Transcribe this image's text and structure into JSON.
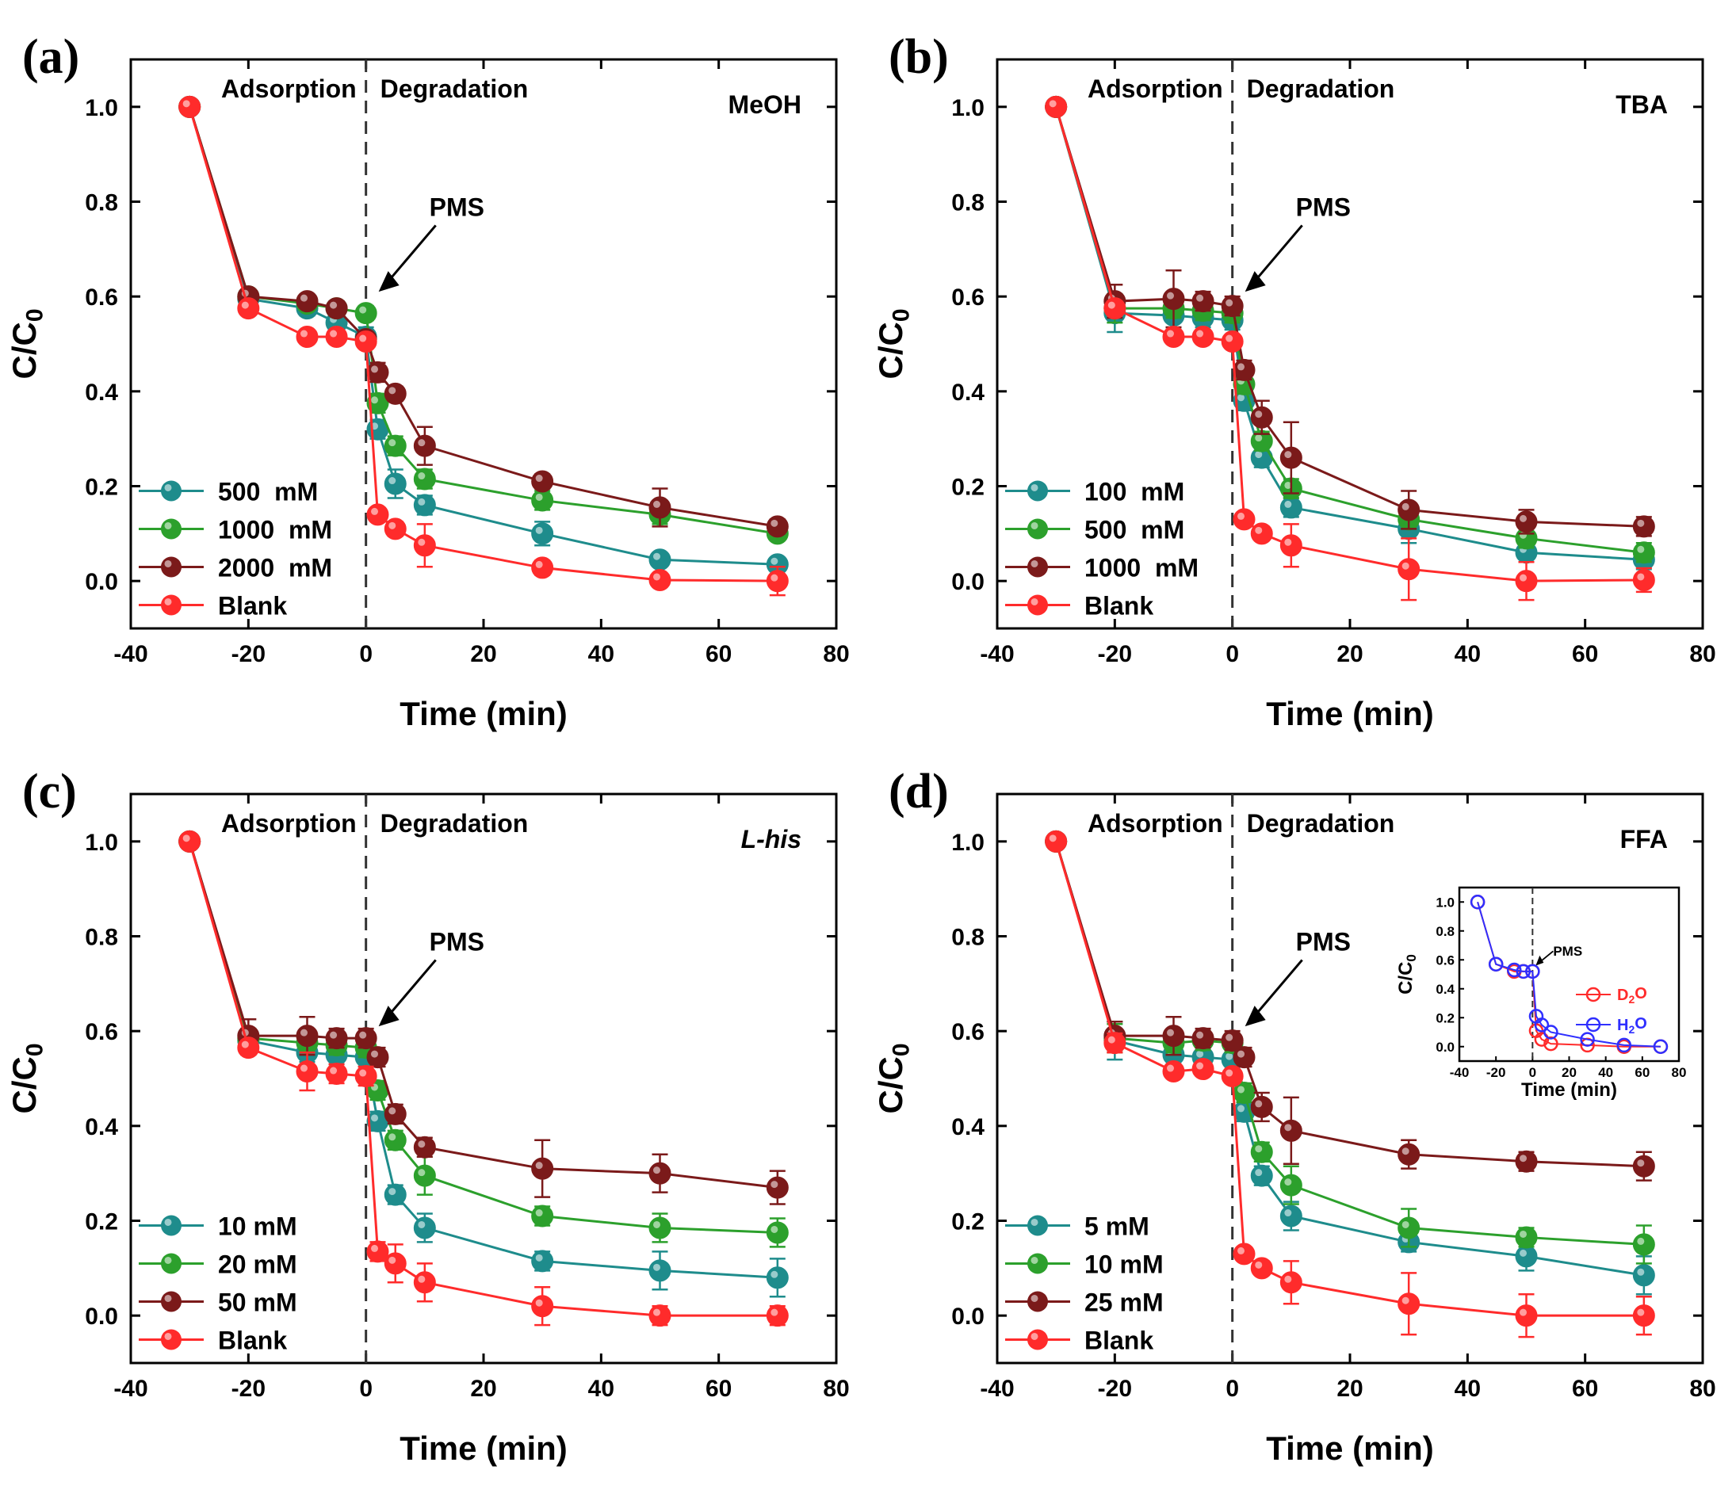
{
  "chart_data": [
    {
      "type": "line",
      "panel_label": "(a)",
      "annotation": "MeOH",
      "annotation_italic": false,
      "phase_labels": [
        "Adsorption",
        "Degradation"
      ],
      "arrow_label": "PMS",
      "xlabel": "Time (min)",
      "ylabel": "C/C0",
      "xlim": [
        -40,
        80
      ],
      "ylim": [
        -0.1,
        1.1
      ],
      "xticks": [
        -40,
        -20,
        0,
        20,
        40,
        60,
        80
      ],
      "yticks": [
        0.0,
        0.2,
        0.4,
        0.6,
        0.8,
        1.0
      ],
      "legend_position": "bottom-left",
      "x": [
        -30,
        -20,
        -10,
        -5,
        0,
        2,
        5,
        10,
        30,
        50,
        70
      ],
      "series": [
        {
          "name": "500  mM",
          "color": "#1e8c8c",
          "values": [
            1.0,
            0.595,
            0.575,
            0.545,
            0.515,
            0.32,
            0.205,
            0.16,
            0.1,
            0.045,
            0.035
          ],
          "errors": [
            0,
            0.01,
            0.015,
            0.02,
            0.02,
            0.02,
            0.03,
            0.02,
            0.025,
            0.01,
            0.01
          ]
        },
        {
          "name": "1000  mM",
          "color": "#2ca02c",
          "values": [
            1.0,
            0.6,
            0.585,
            0.575,
            0.565,
            0.375,
            0.285,
            0.215,
            0.17,
            0.14,
            0.1
          ],
          "errors": [
            0,
            0.01,
            0.01,
            0.015,
            0.015,
            0.02,
            0.02,
            0.02,
            0.02,
            0.02,
            0.01
          ]
        },
        {
          "name": "2000  mM",
          "color": "#7b1a1a",
          "values": [
            1.0,
            0.6,
            0.59,
            0.575,
            0.51,
            0.44,
            0.395,
            0.285,
            0.21,
            0.155,
            0.115
          ],
          "errors": [
            0,
            0.01,
            0.01,
            0.015,
            0.015,
            0.02,
            0.015,
            0.04,
            0.015,
            0.04,
            0.015
          ]
        },
        {
          "name": "Blank",
          "color": "#ff2b2b",
          "values": [
            1.0,
            0.575,
            0.515,
            0.515,
            0.505,
            0.14,
            0.11,
            0.075,
            0.028,
            0.002,
            0.0
          ],
          "errors": [
            0,
            0.01,
            0.01,
            0.01,
            0.01,
            0.01,
            0.015,
            0.045,
            0.015,
            0.01,
            0.03
          ]
        }
      ]
    },
    {
      "type": "line",
      "panel_label": "(b)",
      "annotation": "TBA",
      "annotation_italic": false,
      "phase_labels": [
        "Adsorption",
        "Degradation"
      ],
      "arrow_label": "PMS",
      "xlabel": "Time (min)",
      "ylabel": "C/C0",
      "xlim": [
        -40,
        80
      ],
      "ylim": [
        -0.1,
        1.1
      ],
      "xticks": [
        -40,
        -20,
        0,
        20,
        40,
        60,
        80
      ],
      "yticks": [
        0.0,
        0.2,
        0.4,
        0.6,
        0.8,
        1.0
      ],
      "legend_position": "bottom-left",
      "x": [
        -30,
        -20,
        -10,
        -5,
        0,
        2,
        5,
        10,
        30,
        50,
        70
      ],
      "series": [
        {
          "name": "100  mM",
          "color": "#1e8c8c",
          "values": [
            1.0,
            0.565,
            0.56,
            0.555,
            0.55,
            0.38,
            0.26,
            0.155,
            0.11,
            0.06,
            0.045
          ],
          "errors": [
            0,
            0.04,
            0.03,
            0.02,
            0.02,
            0.02,
            0.02,
            0.02,
            0.03,
            0.02,
            0.02
          ]
        },
        {
          "name": "500  mM",
          "color": "#2ca02c",
          "values": [
            1.0,
            0.575,
            0.575,
            0.57,
            0.565,
            0.415,
            0.295,
            0.195,
            0.13,
            0.09,
            0.06
          ],
          "errors": [
            0,
            0.03,
            0.02,
            0.02,
            0.02,
            0.02,
            0.02,
            0.02,
            0.02,
            0.02,
            0.02
          ]
        },
        {
          "name": "1000  mM",
          "color": "#7b1a1a",
          "values": [
            1.0,
            0.59,
            0.595,
            0.59,
            0.58,
            0.445,
            0.345,
            0.26,
            0.15,
            0.125,
            0.115
          ],
          "errors": [
            0,
            0.035,
            0.06,
            0.02,
            0.02,
            0.02,
            0.035,
            0.075,
            0.04,
            0.025,
            0.02
          ]
        },
        {
          "name": "Blank",
          "color": "#ff2b2b",
          "values": [
            1.0,
            0.575,
            0.515,
            0.515,
            0.505,
            0.13,
            0.1,
            0.075,
            0.025,
            0.0,
            0.002
          ],
          "errors": [
            0,
            0.015,
            0.01,
            0.01,
            0.01,
            0.01,
            0.01,
            0.045,
            0.065,
            0.04,
            0.025
          ]
        }
      ]
    },
    {
      "type": "line",
      "panel_label": "(c)",
      "annotation": "L-his",
      "annotation_italic": true,
      "phase_labels": [
        "Adsorption",
        "Degradation"
      ],
      "arrow_label": "PMS",
      "xlabel": "Time (min)",
      "ylabel": "C/C0",
      "xlim": [
        -40,
        80
      ],
      "ylim": [
        -0.1,
        1.1
      ],
      "xticks": [
        -40,
        -20,
        0,
        20,
        40,
        60,
        80
      ],
      "yticks": [
        0.0,
        0.2,
        0.4,
        0.6,
        0.8,
        1.0
      ],
      "legend_position": "bottom-left",
      "x": [
        -30,
        -20,
        -10,
        -5,
        0,
        2,
        5,
        10,
        30,
        50,
        70
      ],
      "series": [
        {
          "name": "10 mM",
          "color": "#1e8c8c",
          "values": [
            1.0,
            0.58,
            0.555,
            0.55,
            0.545,
            0.41,
            0.255,
            0.185,
            0.115,
            0.095,
            0.08
          ],
          "errors": [
            0,
            0.02,
            0.02,
            0.02,
            0.02,
            0.02,
            0.02,
            0.03,
            0.02,
            0.04,
            0.04
          ]
        },
        {
          "name": "20 mM",
          "color": "#2ca02c",
          "values": [
            1.0,
            0.585,
            0.575,
            0.57,
            0.565,
            0.475,
            0.37,
            0.295,
            0.21,
            0.185,
            0.175
          ],
          "errors": [
            0,
            0.02,
            0.02,
            0.02,
            0.02,
            0.02,
            0.02,
            0.04,
            0.02,
            0.03,
            0.03
          ]
        },
        {
          "name": "50 mM",
          "color": "#7b1a1a",
          "values": [
            1.0,
            0.59,
            0.59,
            0.585,
            0.585,
            0.545,
            0.425,
            0.355,
            0.31,
            0.3,
            0.27
          ],
          "errors": [
            0,
            0.035,
            0.04,
            0.02,
            0.02,
            0.02,
            0.02,
            0.02,
            0.06,
            0.04,
            0.035
          ]
        },
        {
          "name": "Blank",
          "color": "#ff2b2b",
          "values": [
            1.0,
            0.565,
            0.515,
            0.51,
            0.505,
            0.135,
            0.11,
            0.07,
            0.02,
            0.0,
            0.0
          ],
          "errors": [
            0,
            0.015,
            0.04,
            0.02,
            0.02,
            0.02,
            0.04,
            0.04,
            0.04,
            0.02,
            0.02
          ]
        }
      ]
    },
    {
      "type": "line",
      "panel_label": "(d)",
      "annotation": "FFA",
      "annotation_italic": false,
      "phase_labels": [
        "Adsorption",
        "Degradation"
      ],
      "arrow_label": "PMS",
      "xlabel": "Time (min)",
      "ylabel": "C/C0",
      "xlim": [
        -40,
        80
      ],
      "ylim": [
        -0.1,
        1.1
      ],
      "xticks": [
        -40,
        -20,
        0,
        20,
        40,
        60,
        80
      ],
      "yticks": [
        0.0,
        0.2,
        0.4,
        0.6,
        0.8,
        1.0
      ],
      "legend_position": "bottom-left",
      "x": [
        -30,
        -20,
        -10,
        -5,
        0,
        2,
        5,
        10,
        30,
        50,
        70
      ],
      "series": [
        {
          "name": "5 mM",
          "color": "#1e8c8c",
          "values": [
            1.0,
            0.58,
            0.55,
            0.545,
            0.54,
            0.43,
            0.295,
            0.21,
            0.155,
            0.125,
            0.085
          ],
          "errors": [
            0,
            0.04,
            0.02,
            0.02,
            0.02,
            0.02,
            0.02,
            0.03,
            0.02,
            0.03,
            0.04
          ]
        },
        {
          "name": "10 mM",
          "color": "#2ca02c",
          "values": [
            1.0,
            0.585,
            0.575,
            0.58,
            0.575,
            0.47,
            0.345,
            0.275,
            0.185,
            0.165,
            0.15
          ],
          "errors": [
            0,
            0.03,
            0.02,
            0.02,
            0.02,
            0.02,
            0.02,
            0.04,
            0.04,
            0.02,
            0.04
          ]
        },
        {
          "name": "25 mM",
          "color": "#7b1a1a",
          "values": [
            1.0,
            0.59,
            0.59,
            0.585,
            0.58,
            0.545,
            0.44,
            0.39,
            0.34,
            0.325,
            0.315
          ],
          "errors": [
            0,
            0.03,
            0.04,
            0.02,
            0.02,
            0.02,
            0.03,
            0.07,
            0.03,
            0.02,
            0.03
          ]
        },
        {
          "name": "Blank",
          "color": "#ff2b2b",
          "values": [
            1.0,
            0.575,
            0.515,
            0.52,
            0.505,
            0.13,
            0.1,
            0.07,
            0.025,
            0.0,
            0.0
          ],
          "errors": [
            0,
            0.02,
            0.01,
            0.01,
            0.01,
            0.01,
            0.01,
            0.045,
            0.065,
            0.045,
            0.04
          ]
        }
      ],
      "inset": {
        "arrow_label": "PMS",
        "xlabel": "Time (min)",
        "ylabel": "C/C0",
        "xlim": [
          -40,
          80
        ],
        "ylim": [
          -0.1,
          1.1
        ],
        "xticks": [
          -40,
          -20,
          0,
          20,
          40,
          60,
          80
        ],
        "yticks": [
          0.0,
          0.2,
          0.4,
          0.6,
          0.8,
          1.0
        ],
        "x": [
          -30,
          -20,
          -10,
          -5,
          0,
          2,
          5,
          10,
          30,
          50,
          70
        ],
        "series": [
          {
            "name": "D2O",
            "color": "#ff2b2b",
            "values": [
              1.0,
              0.57,
              0.52,
              0.52,
              0.52,
              0.11,
              0.05,
              0.02,
              0.01,
              0.0,
              0.0
            ]
          },
          {
            "name": "H2O",
            "color": "#2f2fff",
            "values": [
              1.0,
              0.57,
              0.53,
              0.52,
              0.52,
              0.21,
              0.15,
              0.1,
              0.05,
              0.01,
              0.0
            ]
          }
        ]
      }
    }
  ]
}
